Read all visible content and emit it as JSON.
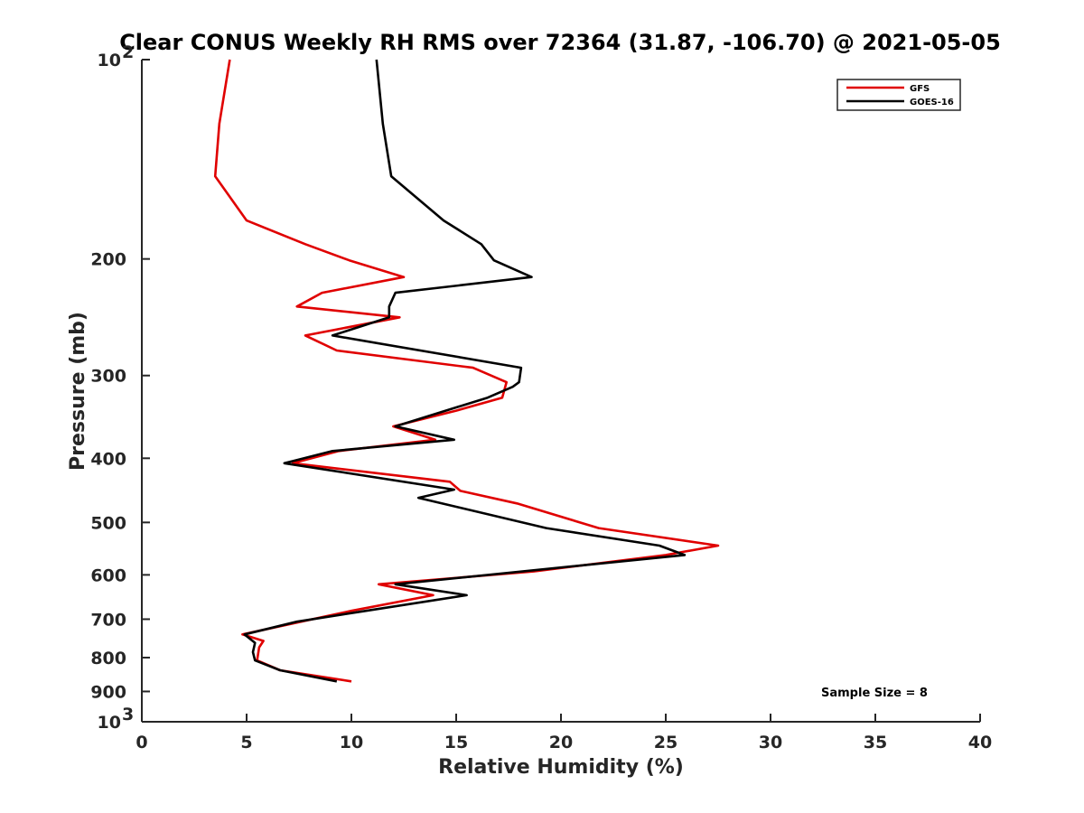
{
  "chart_data": {
    "type": "line",
    "title": "Clear CONUS Weekly RH RMS over 72364 (31.87, -106.70) @ 2021-05-05",
    "xlabel": "Relative Humidity (%)",
    "ylabel": "Pressure (mb)",
    "xlim": [
      0,
      40
    ],
    "ylim": [
      100,
      1000
    ],
    "y_scale": "log",
    "y_reversed": true,
    "x_ticks": [
      "0",
      "5",
      "10",
      "15",
      "20",
      "25",
      "30",
      "35",
      "40"
    ],
    "y_ticks": [
      {
        "value": 100,
        "label": "10",
        "sup": "2"
      },
      {
        "value": 200,
        "label": "200",
        "sup": ""
      },
      {
        "value": 300,
        "label": "300",
        "sup": ""
      },
      {
        "value": 400,
        "label": "400",
        "sup": ""
      },
      {
        "value": 500,
        "label": "500",
        "sup": ""
      },
      {
        "value": 600,
        "label": "600",
        "sup": ""
      },
      {
        "value": 700,
        "label": "700",
        "sup": ""
      },
      {
        "value": 800,
        "label": "800",
        "sup": ""
      },
      {
        "value": 900,
        "label": "900",
        "sup": ""
      },
      {
        "value": 1000,
        "label": "10",
        "sup": "3"
      }
    ],
    "legend_position": "top-right",
    "grid": false,
    "annotation": "Sample Size = 8",
    "series": [
      {
        "name": "GFS",
        "color": "#e00000",
        "points": [
          [
            4.2,
            100
          ],
          [
            3.7,
            125
          ],
          [
            3.5,
            150
          ],
          [
            5.0,
            175
          ],
          [
            7.8,
            190
          ],
          [
            9.9,
            201
          ],
          [
            12.5,
            213
          ],
          [
            8.6,
            225
          ],
          [
            7.4,
            236
          ],
          [
            12.3,
            245
          ],
          [
            7.8,
            261
          ],
          [
            9.3,
            275
          ],
          [
            15.8,
            292
          ],
          [
            17.4,
            307
          ],
          [
            17.2,
            324
          ],
          [
            15.0,
            339
          ],
          [
            12.0,
            358
          ],
          [
            14.0,
            375
          ],
          [
            9.4,
            390
          ],
          [
            7.2,
            407
          ],
          [
            14.7,
            434
          ],
          [
            15.2,
            448
          ],
          [
            17.9,
            468
          ],
          [
            21.8,
            510
          ],
          [
            27.5,
            542
          ],
          [
            25.0,
            560
          ],
          [
            18.7,
            593
          ],
          [
            11.3,
            620
          ],
          [
            13.9,
            644
          ],
          [
            10.0,
            680
          ],
          [
            7.6,
            706
          ],
          [
            4.8,
            738
          ],
          [
            5.8,
            755
          ],
          [
            5.6,
            772
          ],
          [
            5.5,
            808
          ],
          [
            6.6,
            836
          ],
          [
            10.0,
            869
          ]
        ]
      },
      {
        "name": "GOES-16",
        "color": "#000000",
        "points": [
          [
            11.2,
            100
          ],
          [
            11.5,
            125
          ],
          [
            11.9,
            150
          ],
          [
            14.4,
            175
          ],
          [
            16.2,
            190
          ],
          [
            16.8,
            201
          ],
          [
            18.6,
            213
          ],
          [
            12.1,
            225
          ],
          [
            11.8,
            236
          ],
          [
            11.8,
            245
          ],
          [
            9.1,
            261
          ],
          [
            18.1,
            292
          ],
          [
            18.0,
            307
          ],
          [
            17.7,
            312
          ],
          [
            16.5,
            324
          ],
          [
            12.1,
            358
          ],
          [
            14.9,
            375
          ],
          [
            9.1,
            390
          ],
          [
            6.8,
            407
          ],
          [
            14.9,
            446
          ],
          [
            13.2,
            459
          ],
          [
            19.3,
            510
          ],
          [
            24.7,
            542
          ],
          [
            25.9,
            560
          ],
          [
            12.1,
            620
          ],
          [
            15.5,
            644
          ],
          [
            10.7,
            680
          ],
          [
            7.4,
            706
          ],
          [
            4.9,
            738
          ],
          [
            5.4,
            760
          ],
          [
            5.3,
            785
          ],
          [
            5.4,
            808
          ],
          [
            6.6,
            836
          ],
          [
            9.3,
            869
          ]
        ]
      }
    ]
  }
}
